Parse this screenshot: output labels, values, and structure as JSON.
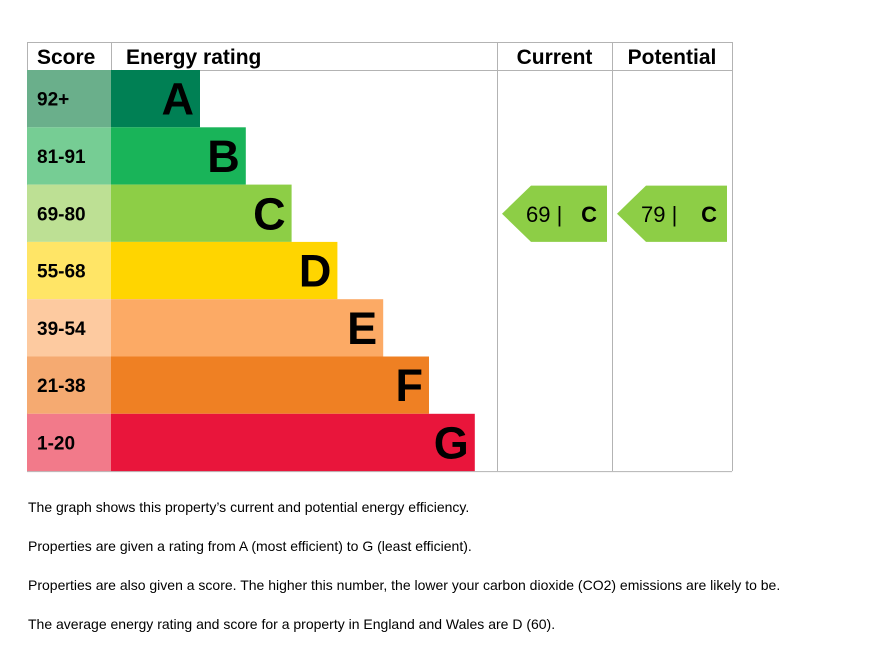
{
  "chart_data": {
    "type": "bar",
    "headers": {
      "score": "Score",
      "rating": "Energy rating",
      "current": "Current",
      "potential": "Potential"
    },
    "bands": [
      {
        "score": "92+",
        "letter": "A",
        "color": "#008054",
        "score_color": "#6aaf8b"
      },
      {
        "score": "81-91",
        "letter": "B",
        "color": "#19b459",
        "score_color": "#76cd94"
      },
      {
        "score": "69-80",
        "letter": "C",
        "color": "#8dce46",
        "score_color": "#bde094"
      },
      {
        "score": "55-68",
        "letter": "D",
        "color": "#ffd500",
        "score_color": "#ffe566"
      },
      {
        "score": "39-54",
        "letter": "E",
        "color": "#fcaa65",
        "score_color": "#fdcaa0"
      },
      {
        "score": "21-38",
        "letter": "F",
        "color": "#ef8023",
        "score_color": "#f5aa71"
      },
      {
        "score": "1-20",
        "letter": "G",
        "color": "#e9153b",
        "score_color": "#f27a8a"
      }
    ],
    "current": {
      "value": 69,
      "band": "C",
      "label": "69 |",
      "letter": "C",
      "color": "#8dce46"
    },
    "potential": {
      "value": 79,
      "band": "C",
      "label": "79 |",
      "letter": "C",
      "color": "#8dce46"
    }
  },
  "notes": [
    "The graph shows this property’s current and potential energy efficiency.",
    "Properties are given a rating from A (most efficient) to G (least efficient).",
    "Properties are also given a score. The higher this number, the lower your carbon dioxide (CO2) emissions are likely to be.",
    "The average energy rating and score for a property in England and Wales are D (60)."
  ]
}
